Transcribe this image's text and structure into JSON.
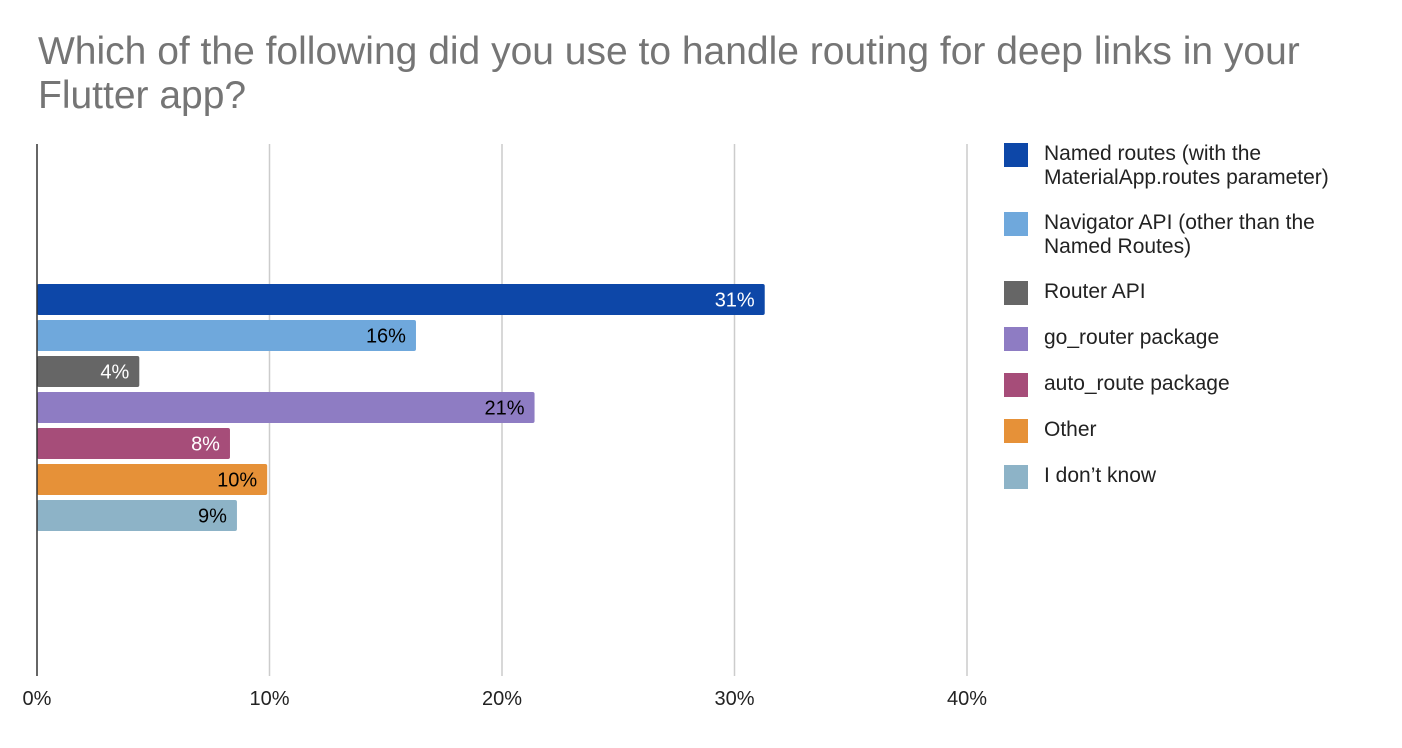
{
  "chart_data": {
    "type": "bar",
    "orientation": "horizontal",
    "title": "Which of the following did you use to handle routing for deep links in your Flutter app?",
    "xlabel": "",
    "ylabel": "",
    "xlim": [
      0,
      40
    ],
    "x_ticks": [
      "0%",
      "10%",
      "20%",
      "30%",
      "40%"
    ],
    "grid": true,
    "legend_position": "right",
    "series": [
      {
        "name": "Named routes (with the MaterialApp.routes parameter)",
        "value": 31.3,
        "label": "31%",
        "color": "#0d47a8",
        "label_color": "#ffffff"
      },
      {
        "name": "Navigator API (other than the Named Routes)",
        "value": 16.3,
        "label": "16%",
        "color": "#6fa8dc",
        "label_color": "#000000"
      },
      {
        "name": "Router API",
        "value": 4.4,
        "label": "4%",
        "color": "#666666",
        "label_color": "#ffffff"
      },
      {
        "name": "go_router package",
        "value": 21.4,
        "label": "21%",
        "color": "#8e7cc3",
        "label_color": "#000000"
      },
      {
        "name": "auto_route package",
        "value": 8.3,
        "label": "8%",
        "color": "#a64d79",
        "label_color": "#ffffff"
      },
      {
        "name": "Other",
        "value": 9.9,
        "label": "10%",
        "color": "#e69138",
        "label_color": "#000000"
      },
      {
        "name": "I don’t know",
        "value": 8.6,
        "label": "9%",
        "color": "#8db3c7",
        "label_color": "#000000"
      }
    ]
  }
}
